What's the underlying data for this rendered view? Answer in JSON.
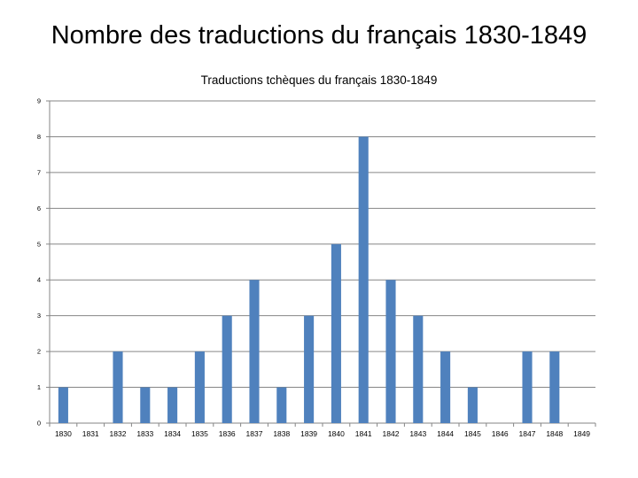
{
  "slide": {
    "title": "Nombre des traductions du français 1830-1849"
  },
  "chart_data": {
    "type": "bar",
    "title": "Traductions tchèques du français 1830-1849",
    "xlabel": "",
    "ylabel": "",
    "categories": [
      "1830",
      "1831",
      "1832",
      "1833",
      "1834",
      "1835",
      "1836",
      "1837",
      "1838",
      "1839",
      "1840",
      "1841",
      "1842",
      "1843",
      "1844",
      "1845",
      "1846",
      "1847",
      "1848",
      "1849"
    ],
    "values": [
      1,
      0,
      2,
      1,
      1,
      2,
      3,
      4,
      1,
      3,
      5,
      8,
      4,
      3,
      2,
      1,
      0,
      2,
      2,
      0
    ],
    "ylim": [
      0,
      9
    ],
    "yticks": [
      "0",
      "1",
      "2",
      "3",
      "4",
      "5",
      "6",
      "7",
      "8",
      "9"
    ],
    "grid": true,
    "legend": "none",
    "bar_color": "#4f81bd",
    "grid_color": "#868686"
  }
}
